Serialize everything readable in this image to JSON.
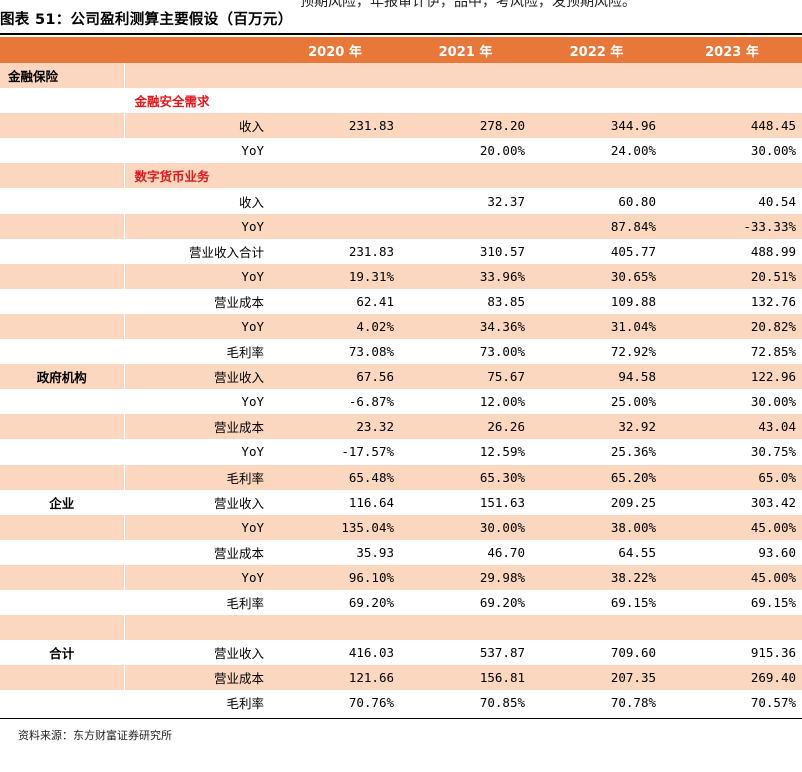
{
  "top_text": "预期风险，年报审计伊，品中，考风险，发预期风险。",
  "title": "图表 51：公司盈利测算主要假设（百万元）",
  "headers": [
    "",
    "",
    "2020 年",
    "2021 年",
    "2022 年",
    "2023 年"
  ],
  "rows": [
    {
      "band": true,
      "cat": "金融保险",
      "catAlign": "left",
      "sub": "",
      "vals": [
        "",
        "",
        "",
        ""
      ]
    },
    {
      "band": false,
      "cat": "",
      "subhead": "金融安全需求",
      "sub": "",
      "vals": [
        "",
        "",
        "",
        ""
      ]
    },
    {
      "band": true,
      "cat": "",
      "sub": "收入",
      "vals": [
        "231.83",
        "278.20",
        "344.96",
        "448.45"
      ]
    },
    {
      "band": false,
      "cat": "",
      "sub": "YoY",
      "vals": [
        "",
        "20.00%",
        "24.00%",
        "30.00%"
      ]
    },
    {
      "band": true,
      "cat": "",
      "subhead": "数字货币业务",
      "sub": "",
      "vals": [
        "",
        "",
        "",
        ""
      ]
    },
    {
      "band": false,
      "cat": "",
      "sub": "收入",
      "vals": [
        "",
        "32.37",
        "60.80",
        "40.54"
      ]
    },
    {
      "band": true,
      "cat": "",
      "sub": "YoY",
      "vals": [
        "",
        "",
        "87.84%",
        "-33.33%"
      ]
    },
    {
      "band": false,
      "cat": "",
      "sub": "营业收入合计",
      "vals": [
        "231.83",
        "310.57",
        "405.77",
        "488.99"
      ]
    },
    {
      "band": true,
      "cat": "",
      "sub": "YoY",
      "vals": [
        "19.31%",
        "33.96%",
        "30.65%",
        "20.51%"
      ]
    },
    {
      "band": false,
      "cat": "",
      "sub": "营业成本",
      "vals": [
        "62.41",
        "83.85",
        "109.88",
        "132.76"
      ]
    },
    {
      "band": true,
      "cat": "",
      "sub": "YoY",
      "vals": [
        "4.02%",
        "34.36%",
        "31.04%",
        "20.82%"
      ]
    },
    {
      "band": false,
      "cat": "",
      "sub": "毛利率",
      "vals": [
        "73.08%",
        "73.00%",
        "72.92%",
        "72.85%"
      ]
    },
    {
      "band": true,
      "cat": "政府机构",
      "catAlign": "center",
      "sub": "营业收入",
      "vals": [
        "67.56",
        "75.67",
        "94.58",
        "122.96"
      ]
    },
    {
      "band": false,
      "cat": "",
      "sub": "YoY",
      "vals": [
        "-6.87%",
        "12.00%",
        "25.00%",
        "30.00%"
      ]
    },
    {
      "band": true,
      "cat": "",
      "sub": "营业成本",
      "vals": [
        "23.32",
        "26.26",
        "32.92",
        "43.04"
      ]
    },
    {
      "band": false,
      "cat": "",
      "sub": "YoY",
      "vals": [
        "-17.57%",
        "12.59%",
        "25.36%",
        "30.75%"
      ]
    },
    {
      "band": true,
      "cat": "",
      "sub": "毛利率",
      "vals": [
        "65.48%",
        "65.30%",
        "65.20%",
        "65.0%"
      ]
    },
    {
      "band": false,
      "cat": "企业",
      "catAlign": "center",
      "sub": "营业收入",
      "vals": [
        "116.64",
        "151.63",
        "209.25",
        "303.42"
      ]
    },
    {
      "band": true,
      "cat": "",
      "sub": "YoY",
      "vals": [
        "135.04%",
        "30.00%",
        "38.00%",
        "45.00%"
      ]
    },
    {
      "band": false,
      "cat": "",
      "sub": "营业成本",
      "vals": [
        "35.93",
        "46.70",
        "64.55",
        "93.60"
      ]
    },
    {
      "band": true,
      "cat": "",
      "sub": "YoY",
      "vals": [
        "96.10%",
        "29.98%",
        "38.22%",
        "45.00%"
      ]
    },
    {
      "band": false,
      "cat": "",
      "sub": "毛利率",
      "vals": [
        "69.20%",
        "69.20%",
        "69.15%",
        "69.15%"
      ]
    },
    {
      "band": true,
      "cat": "",
      "sub": "",
      "vals": [
        "",
        "",
        "",
        ""
      ]
    },
    {
      "band": false,
      "cat": "合计",
      "catAlign": "center",
      "sub": "营业收入",
      "vals": [
        "416.03",
        "537.87",
        "709.60",
        "915.36"
      ]
    },
    {
      "band": true,
      "cat": "",
      "sub": "营业成本",
      "vals": [
        "121.66",
        "156.81",
        "207.35",
        "269.40"
      ]
    },
    {
      "band": false,
      "cat": "",
      "sub": "毛利率",
      "vals": [
        "70.76%",
        "70.85%",
        "70.78%",
        "70.57%"
      ]
    }
  ],
  "source": "资料来源：东方财富证券研究所"
}
